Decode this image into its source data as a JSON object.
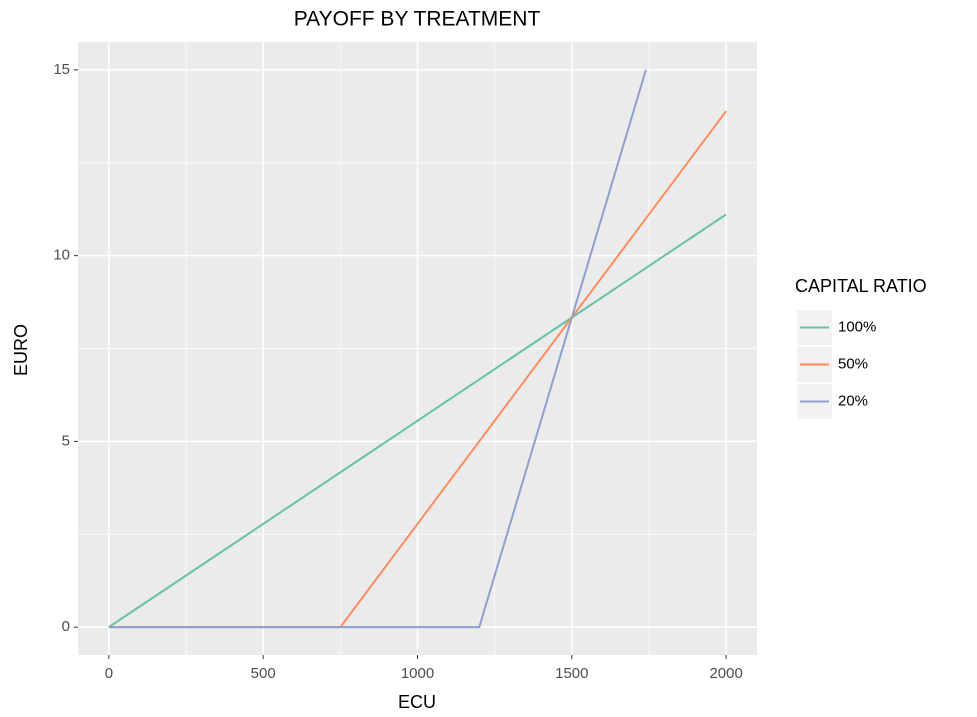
{
  "chart_data": {
    "type": "line",
    "title": "PAYOFF BY TREATMENT",
    "x_label": "ECU",
    "y_label": "EURO",
    "legend_title": "CAPITAL RATIO",
    "series": [
      {
        "name": "100%",
        "color": "#66c2a5",
        "x": [
          0,
          2000
        ],
        "values": [
          0,
          11.11
        ]
      },
      {
        "name": "50%",
        "color": "#fc8d62",
        "x": [
          0,
          750,
          2000
        ],
        "values": [
          0,
          0,
          13.89
        ]
      },
      {
        "name": "20%",
        "color": "#8da0cb",
        "x": [
          0,
          1200,
          1740
        ],
        "values": [
          0,
          0,
          15
        ]
      }
    ],
    "xlim": [
      -100,
      2100
    ],
    "xticks": [
      0,
      500,
      1000,
      1500,
      2000
    ],
    "ylim": [
      -0.75,
      15.75
    ],
    "yticks": [
      0,
      5,
      10,
      15
    ],
    "grid": true,
    "minor_grid": true,
    "legend_position": "right"
  }
}
